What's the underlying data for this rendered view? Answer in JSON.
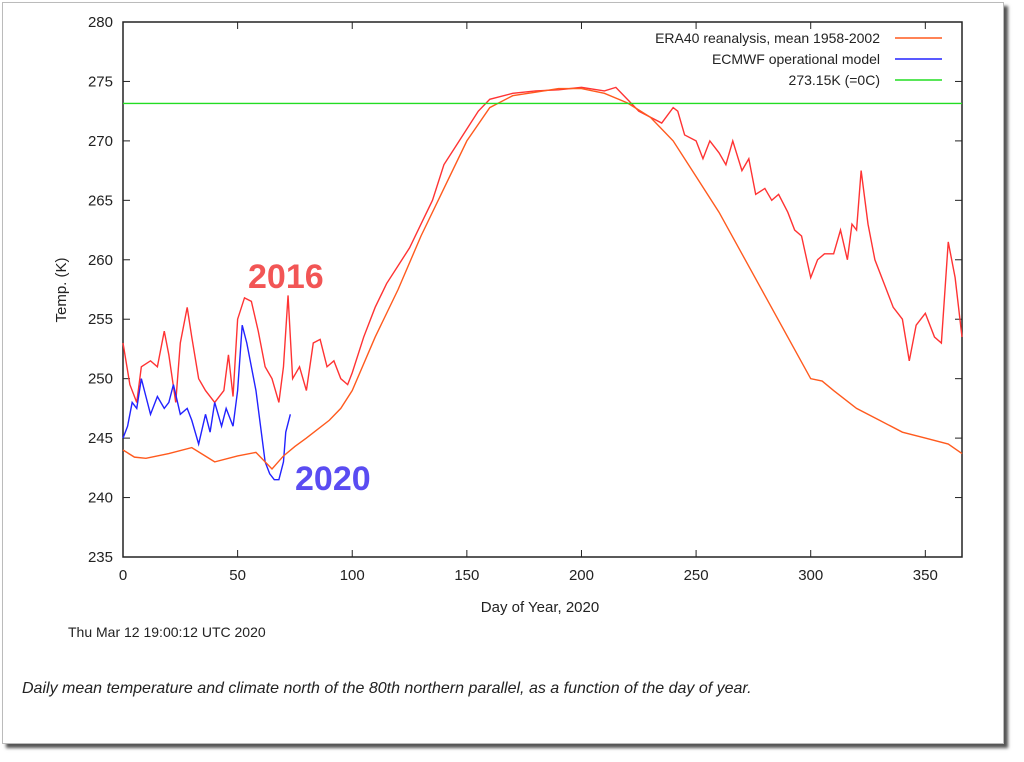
{
  "chart_data": {
    "type": "line",
    "xlabel": "Day of Year, 2020",
    "ylabel": "Temp. (K)",
    "xlim": [
      0,
      366
    ],
    "ylim": [
      235,
      280
    ],
    "xticks": [
      0,
      50,
      100,
      150,
      200,
      250,
      300,
      350
    ],
    "yticks": [
      235,
      240,
      245,
      250,
      255,
      260,
      265,
      270,
      275,
      280
    ],
    "legend_position": "top-right",
    "timestamp": "Thu Mar 12 19:00:12 UTC 2020",
    "series": [
      {
        "name": "ERA40 reanalysis, mean 1958-2002",
        "color": "#ff5a1e",
        "x": [
          0,
          5,
          10,
          20,
          30,
          35,
          40,
          50,
          58,
          62,
          65,
          70,
          75,
          80,
          90,
          95,
          100,
          110,
          120,
          130,
          140,
          150,
          160,
          170,
          180,
          190,
          200,
          210,
          220,
          230,
          240,
          250,
          260,
          270,
          280,
          290,
          300,
          305,
          310,
          320,
          330,
          340,
          350,
          360,
          366
        ],
        "y": [
          244,
          243.4,
          243.3,
          243.7,
          244.2,
          243.6,
          243,
          243.5,
          243.8,
          243,
          242.4,
          243.5,
          244.3,
          245,
          246.5,
          247.5,
          249,
          253.5,
          257.5,
          262,
          266,
          270,
          272.8,
          273.8,
          274.1,
          274.4,
          274.4,
          274,
          273.2,
          272,
          270,
          267,
          264,
          260.5,
          257,
          253.5,
          250,
          249.8,
          249,
          247.5,
          246.5,
          245.5,
          245,
          244.5,
          243.7
        ]
      },
      {
        "name": "ECMWF operational model",
        "color": "#2222ff",
        "x": [
          0,
          2,
          4,
          6,
          8,
          10,
          12,
          15,
          18,
          20,
          22,
          25,
          28,
          30,
          33,
          36,
          38,
          40,
          43,
          45,
          48,
          50,
          52,
          54,
          56,
          58,
          60,
          62,
          64,
          66,
          68,
          70,
          71,
          73
        ],
        "y": [
          245,
          246,
          248,
          247.5,
          250,
          248.5,
          247,
          248.5,
          247.5,
          248,
          249.5,
          247,
          247.5,
          246.5,
          244.5,
          247,
          245.5,
          248,
          246,
          247.5,
          246,
          249,
          254.5,
          253,
          251,
          249,
          246,
          243,
          242,
          241.5,
          241.5,
          243,
          245.5,
          247
        ]
      },
      {
        "name": "273.15K (=0C)",
        "color": "#22dd22",
        "x": [
          0,
          366
        ],
        "y": [
          273.15,
          273.15
        ]
      },
      {
        "name": "",
        "label": "2016",
        "color": "#ff3333",
        "x": [
          0,
          3,
          6,
          8,
          12,
          15,
          18,
          20,
          23,
          25,
          28,
          30,
          33,
          36,
          40,
          44,
          46,
          48,
          50,
          53,
          56,
          59,
          62,
          65,
          68,
          70,
          72,
          74,
          77,
          80,
          83,
          86,
          89,
          92,
          95,
          98,
          100,
          105,
          110,
          115,
          120,
          125,
          130,
          135,
          140,
          145,
          150,
          155,
          160,
          170,
          180,
          190,
          200,
          210,
          215,
          220,
          225,
          230,
          235,
          240,
          242,
          245,
          250,
          253,
          256,
          260,
          263,
          266,
          270,
          273,
          276,
          280,
          283,
          286,
          290,
          293,
          296,
          300,
          303,
          306,
          310,
          313,
          316,
          318,
          320,
          322,
          325,
          328,
          332,
          336,
          340,
          343,
          346,
          350,
          354,
          357,
          360,
          363,
          366
        ],
        "y": [
          253,
          249.5,
          248,
          251,
          251.5,
          251,
          254,
          252,
          248,
          253,
          256,
          253.5,
          250,
          249,
          248,
          249,
          252,
          248.5,
          255,
          256.8,
          256.5,
          254,
          251,
          250,
          248,
          251,
          257,
          250,
          251,
          249,
          253,
          253.3,
          251,
          251.5,
          250,
          249.5,
          250.5,
          253.5,
          256,
          258,
          259.5,
          261,
          263,
          265,
          268,
          269.5,
          271,
          272.5,
          273.5,
          274,
          274.2,
          274.3,
          274.5,
          274.2,
          274.5,
          273.5,
          272.5,
          272,
          271.5,
          272.8,
          272.5,
          270.5,
          270,
          268.5,
          270,
          269,
          268,
          270,
          267.5,
          268.5,
          265.5,
          266,
          265,
          265.5,
          264,
          262.5,
          262,
          258.5,
          260,
          260.5,
          260.5,
          262.5,
          260,
          263,
          262.5,
          267.5,
          263,
          260,
          258,
          256,
          255,
          251.5,
          254.5,
          255.5,
          253.5,
          253,
          261.5,
          258.5,
          253.5
        ]
      }
    ]
  },
  "annotations": {
    "year_2016": "2016",
    "year_2020": "2020",
    "color_2016": "#f25555",
    "color_2020": "#5a4cf2"
  },
  "caption": "Daily mean temperature and climate north of the 80th northern parallel, as a function of the day of year."
}
